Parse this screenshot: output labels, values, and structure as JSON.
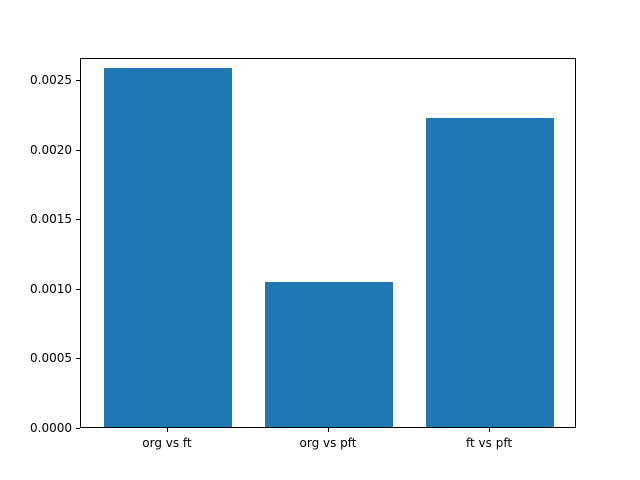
{
  "chart_data": {
    "type": "bar",
    "title": "",
    "xlabel": "",
    "ylabel": "",
    "categories": [
      "org vs ft",
      "org vs pft",
      "ft vs pft"
    ],
    "values": [
      0.00258,
      0.00104,
      0.00222
    ],
    "bar_color": "#1f77b4",
    "ylim": [
      0,
      0.00266
    ],
    "yticks": [
      0.0,
      0.0005,
      0.001,
      0.0015,
      0.002,
      0.0025
    ],
    "ytick_labels": [
      "0.0000",
      "0.0005",
      "0.0010",
      "0.0015",
      "0.0020",
      "0.0025"
    ],
    "grid": false,
    "legend": "none"
  }
}
